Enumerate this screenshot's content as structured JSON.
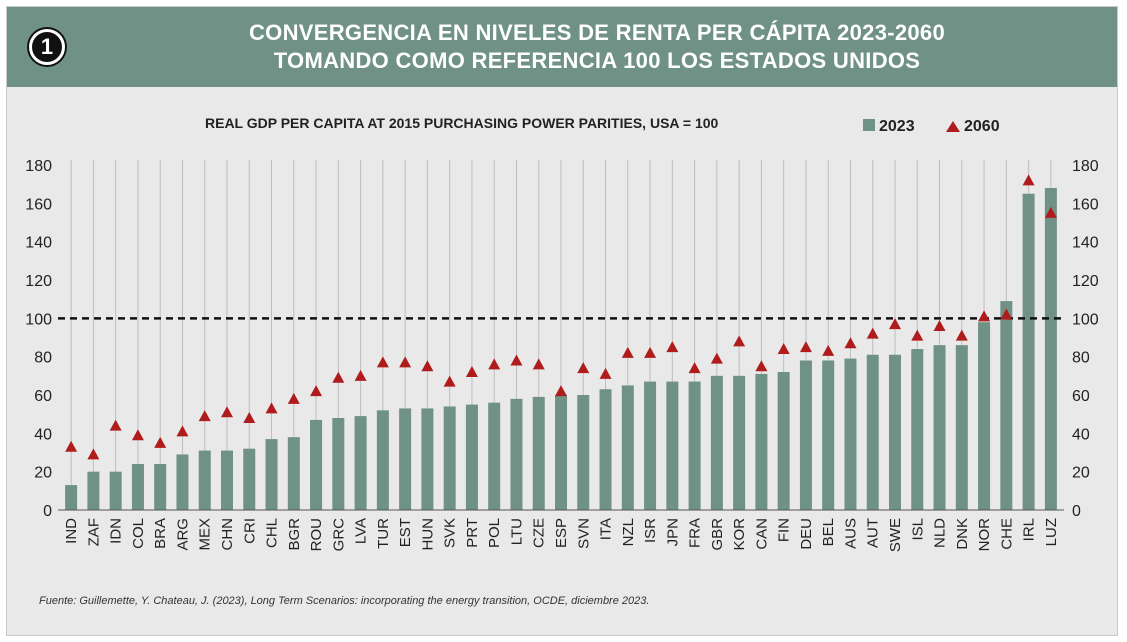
{
  "header": {
    "badge": "1",
    "title_line1": "CONVERGENCIA EN NIVELES DE RENTA PER CÁPITA 2023-2060",
    "title_line2": "TOMANDO COMO REFERENCIA 100 LOS ESTADOS UNIDOS"
  },
  "source": "Fuente: Guillemette, Y. Chateau, J. (2023), Long Term Scenarios: incorporating the energy transition, OCDE, diciembre 2023.",
  "colors": {
    "bar": "#6f9186",
    "marker": "#b01c1c",
    "header": "#6f9186"
  },
  "chart_data": {
    "type": "bar",
    "title": "REAL GDP PER CAPITA AT 2015 PURCHASING POWER PARITIES, USA = 100",
    "categories": [
      "IND",
      "ZAF",
      "IDN",
      "COL",
      "BRA",
      "ARG",
      "MEX",
      "CHN",
      "CRI",
      "CHL",
      "BGR",
      "ROU",
      "GRC",
      "LVA",
      "TUR",
      "EST",
      "HUN",
      "SVK",
      "PRT",
      "POL",
      "LTU",
      "CZE",
      "ESP",
      "SVN",
      "ITA",
      "NZL",
      "ISR",
      "JPN",
      "FRA",
      "GBR",
      "KOR",
      "CAN",
      "FIN",
      "DEU",
      "BEL",
      "AUS",
      "AUT",
      "SWE",
      "ISL",
      "NLD",
      "DNK",
      "NOR",
      "CHE",
      "IRL",
      "LUZ"
    ],
    "series": [
      {
        "name": "2023",
        "kind": "bar",
        "values": [
          13,
          20,
          20,
          24,
          24,
          29,
          31,
          31,
          32,
          37,
          38,
          47,
          48,
          49,
          52,
          53,
          53,
          54,
          55,
          56,
          58,
          59,
          60,
          60,
          63,
          65,
          67,
          67,
          67,
          70,
          70,
          71,
          72,
          78,
          78,
          79,
          81,
          81,
          84,
          86,
          86,
          98,
          109,
          165,
          168
        ]
      },
      {
        "name": "2060",
        "kind": "marker",
        "values": [
          33,
          29,
          44,
          39,
          35,
          41,
          49,
          51,
          48,
          53,
          58,
          62,
          69,
          70,
          77,
          77,
          75,
          67,
          72,
          76,
          78,
          76,
          62,
          74,
          71,
          82,
          82,
          85,
          74,
          79,
          88,
          75,
          84,
          85,
          83,
          87,
          92,
          97,
          91,
          96,
          91,
          101,
          102,
          172,
          155
        ]
      }
    ],
    "ylim": [
      0,
      180
    ],
    "yticks": [
      0,
      20,
      40,
      60,
      80,
      100,
      120,
      140,
      160,
      180
    ],
    "reference_line": 100,
    "grid": "vertical",
    "legend": "top-right"
  }
}
